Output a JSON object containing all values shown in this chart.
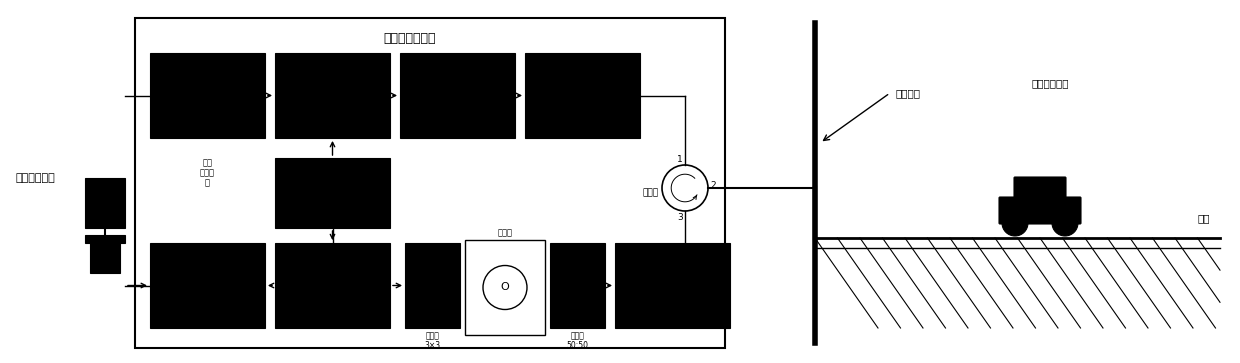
{
  "bg_color": "#ffffff",
  "block_color": "#000000",
  "title_text": "光信号解调设备",
  "signal_host_text": "信号处理主机",
  "trigger_text": "脉冲\n触发脉\n冲",
  "coupler1_text": "耦合器\n3×3",
  "interferometer_text": "干涉仪",
  "coupler2_text": "耦合器\n50:50",
  "circulator_text": "环形器",
  "fiber_text": "探测光缆",
  "road_text": "路面行驶车辆",
  "road_label": "路面",
  "fig_width": 12.4,
  "fig_height": 3.63,
  "dpi": 100
}
